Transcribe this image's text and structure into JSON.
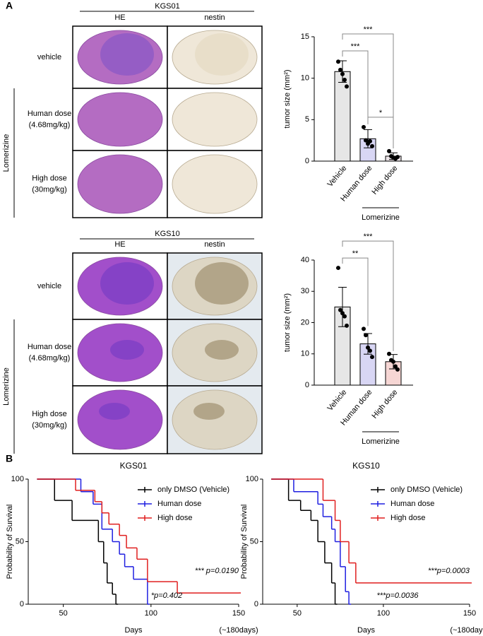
{
  "panels": {
    "a": "A",
    "b": "B"
  },
  "histology": [
    {
      "title": "KGS01",
      "columns": [
        "HE",
        "nestin"
      ],
      "rows": [
        [
          "vehicle"
        ],
        [
          "Human dose",
          "(4.68mg/kg)"
        ],
        [
          "High dose",
          "(30mg/kg)"
        ]
      ],
      "group": "Lomerizine"
    },
    {
      "title": "KGS10",
      "columns": [
        "HE",
        "nestin"
      ],
      "rows": [
        [
          "vehicle"
        ],
        [
          "Human dose",
          "(4.68mg/kg)"
        ],
        [
          "High dose",
          "(30mg/kg)"
        ]
      ],
      "group": "Lomerizine"
    }
  ],
  "chart_data": [
    {
      "type": "bar",
      "ylabel": "tumor size (mm²)",
      "categories": [
        "Vehicle",
        "Human dose",
        "High dose"
      ],
      "values": [
        10.8,
        2.7,
        0.6
      ],
      "errors": [
        1.3,
        1.1,
        0.4
      ],
      "points": [
        [
          12,
          11,
          10.5,
          9.8,
          9
        ],
        [
          4.1,
          2.5,
          2.1,
          2.4,
          1.8
        ],
        [
          1.2,
          0.6,
          0.4,
          0.3,
          0.5
        ]
      ],
      "colors": [
        "#e6e6e6",
        "#d8d6f4",
        "#ece4e8"
      ],
      "ylim": [
        0,
        15
      ],
      "yticks": [
        0,
        5,
        10,
        15
      ],
      "brackets": [
        {
          "between": [
            "Vehicle",
            "Human dose"
          ],
          "label": "***"
        },
        {
          "between": [
            "Vehicle",
            "High dose"
          ],
          "label": "***"
        },
        {
          "between": [
            "Human dose",
            "High dose"
          ],
          "label": "*"
        }
      ],
      "group": {
        "label": "Lomerizine",
        "categories": [
          "Human dose",
          "High dose"
        ]
      }
    },
    {
      "type": "bar",
      "ylabel": "tumor size (mm²)",
      "categories": [
        "Vehicle",
        "Human dose",
        "High dose"
      ],
      "values": [
        25,
        13.2,
        7.5
      ],
      "errors": [
        6.3,
        3.3,
        2.3
      ],
      "points": [
        [
          37.5,
          24,
          23,
          22,
          19
        ],
        [
          18,
          16,
          12,
          11,
          9
        ],
        [
          10,
          8,
          7.5,
          6,
          5
        ]
      ],
      "colors": [
        "#e6e6e6",
        "#d8d6f4",
        "#f6d6d4"
      ],
      "ylim": [
        0,
        40
      ],
      "yticks": [
        0,
        10,
        20,
        30,
        40
      ],
      "brackets": [
        {
          "between": [
            "Vehicle",
            "Human dose"
          ],
          "label": "**"
        },
        {
          "between": [
            "Vehicle",
            "High dose"
          ],
          "label": "***"
        }
      ],
      "group": {
        "label": "Lomerizine",
        "categories": [
          "Human dose",
          "High dose"
        ]
      }
    },
    {
      "type": "step",
      "title": "KGS01",
      "xlabel": "Days",
      "ylabel": "Probability of Survival",
      "xlim": [
        30,
        150
      ],
      "ylim": [
        0,
        100
      ],
      "xticks": [
        50,
        100,
        150
      ],
      "yticks": [
        0,
        50,
        100
      ],
      "xtick_note": "(~180days)",
      "series": [
        {
          "name": "only DMSO (Vehicle)",
          "color": "#000000",
          "x": [
            35,
            45,
            55,
            70,
            73,
            75,
            78,
            80
          ],
          "y": [
            100,
            83,
            67,
            50,
            33,
            17,
            8,
            0
          ]
        },
        {
          "name": "Human dose",
          "color": "#1f1fe0",
          "x": [
            35,
            60,
            67,
            72,
            78,
            82,
            85,
            90,
            98
          ],
          "y": [
            100,
            90,
            80,
            60,
            50,
            40,
            30,
            20,
            0
          ]
        },
        {
          "name": "High dose",
          "color": "#e01f1f",
          "x": [
            35,
            57,
            68,
            72,
            76,
            82,
            86,
            92,
            98,
            115,
            150
          ],
          "y": [
            100,
            91,
            82,
            73,
            64,
            55,
            45,
            36,
            18,
            9,
            9
          ]
        }
      ],
      "annotations": [
        "*** p=0.0190",
        "*p=0.402"
      ]
    },
    {
      "type": "step",
      "title": "KGS10",
      "xlabel": "Days",
      "ylabel": "Probability of Survival",
      "xlim": [
        30,
        150
      ],
      "ylim": [
        0,
        100
      ],
      "xticks": [
        50,
        100,
        150
      ],
      "yticks": [
        0,
        50,
        100
      ],
      "xtick_note": "(~180days)",
      "series": [
        {
          "name": "only DMSO (Vehicle)",
          "color": "#000000",
          "x": [
            35,
            45,
            52,
            58,
            62,
            66,
            70,
            72
          ],
          "y": [
            100,
            83,
            75,
            67,
            50,
            33,
            17,
            0
          ]
        },
        {
          "name": "Human dose",
          "color": "#1f1fe0",
          "x": [
            35,
            48,
            62,
            65,
            70,
            72,
            75,
            78,
            80
          ],
          "y": [
            100,
            90,
            80,
            70,
            60,
            50,
            30,
            10,
            0
          ]
        },
        {
          "name": "High dose",
          "color": "#e01f1f",
          "x": [
            35,
            65,
            72,
            75,
            80,
            84,
            150
          ],
          "y": [
            100,
            83,
            67,
            50,
            33,
            17,
            17
          ]
        }
      ],
      "annotations": [
        "***p=0.0003",
        "***p=0.0036"
      ]
    }
  ]
}
